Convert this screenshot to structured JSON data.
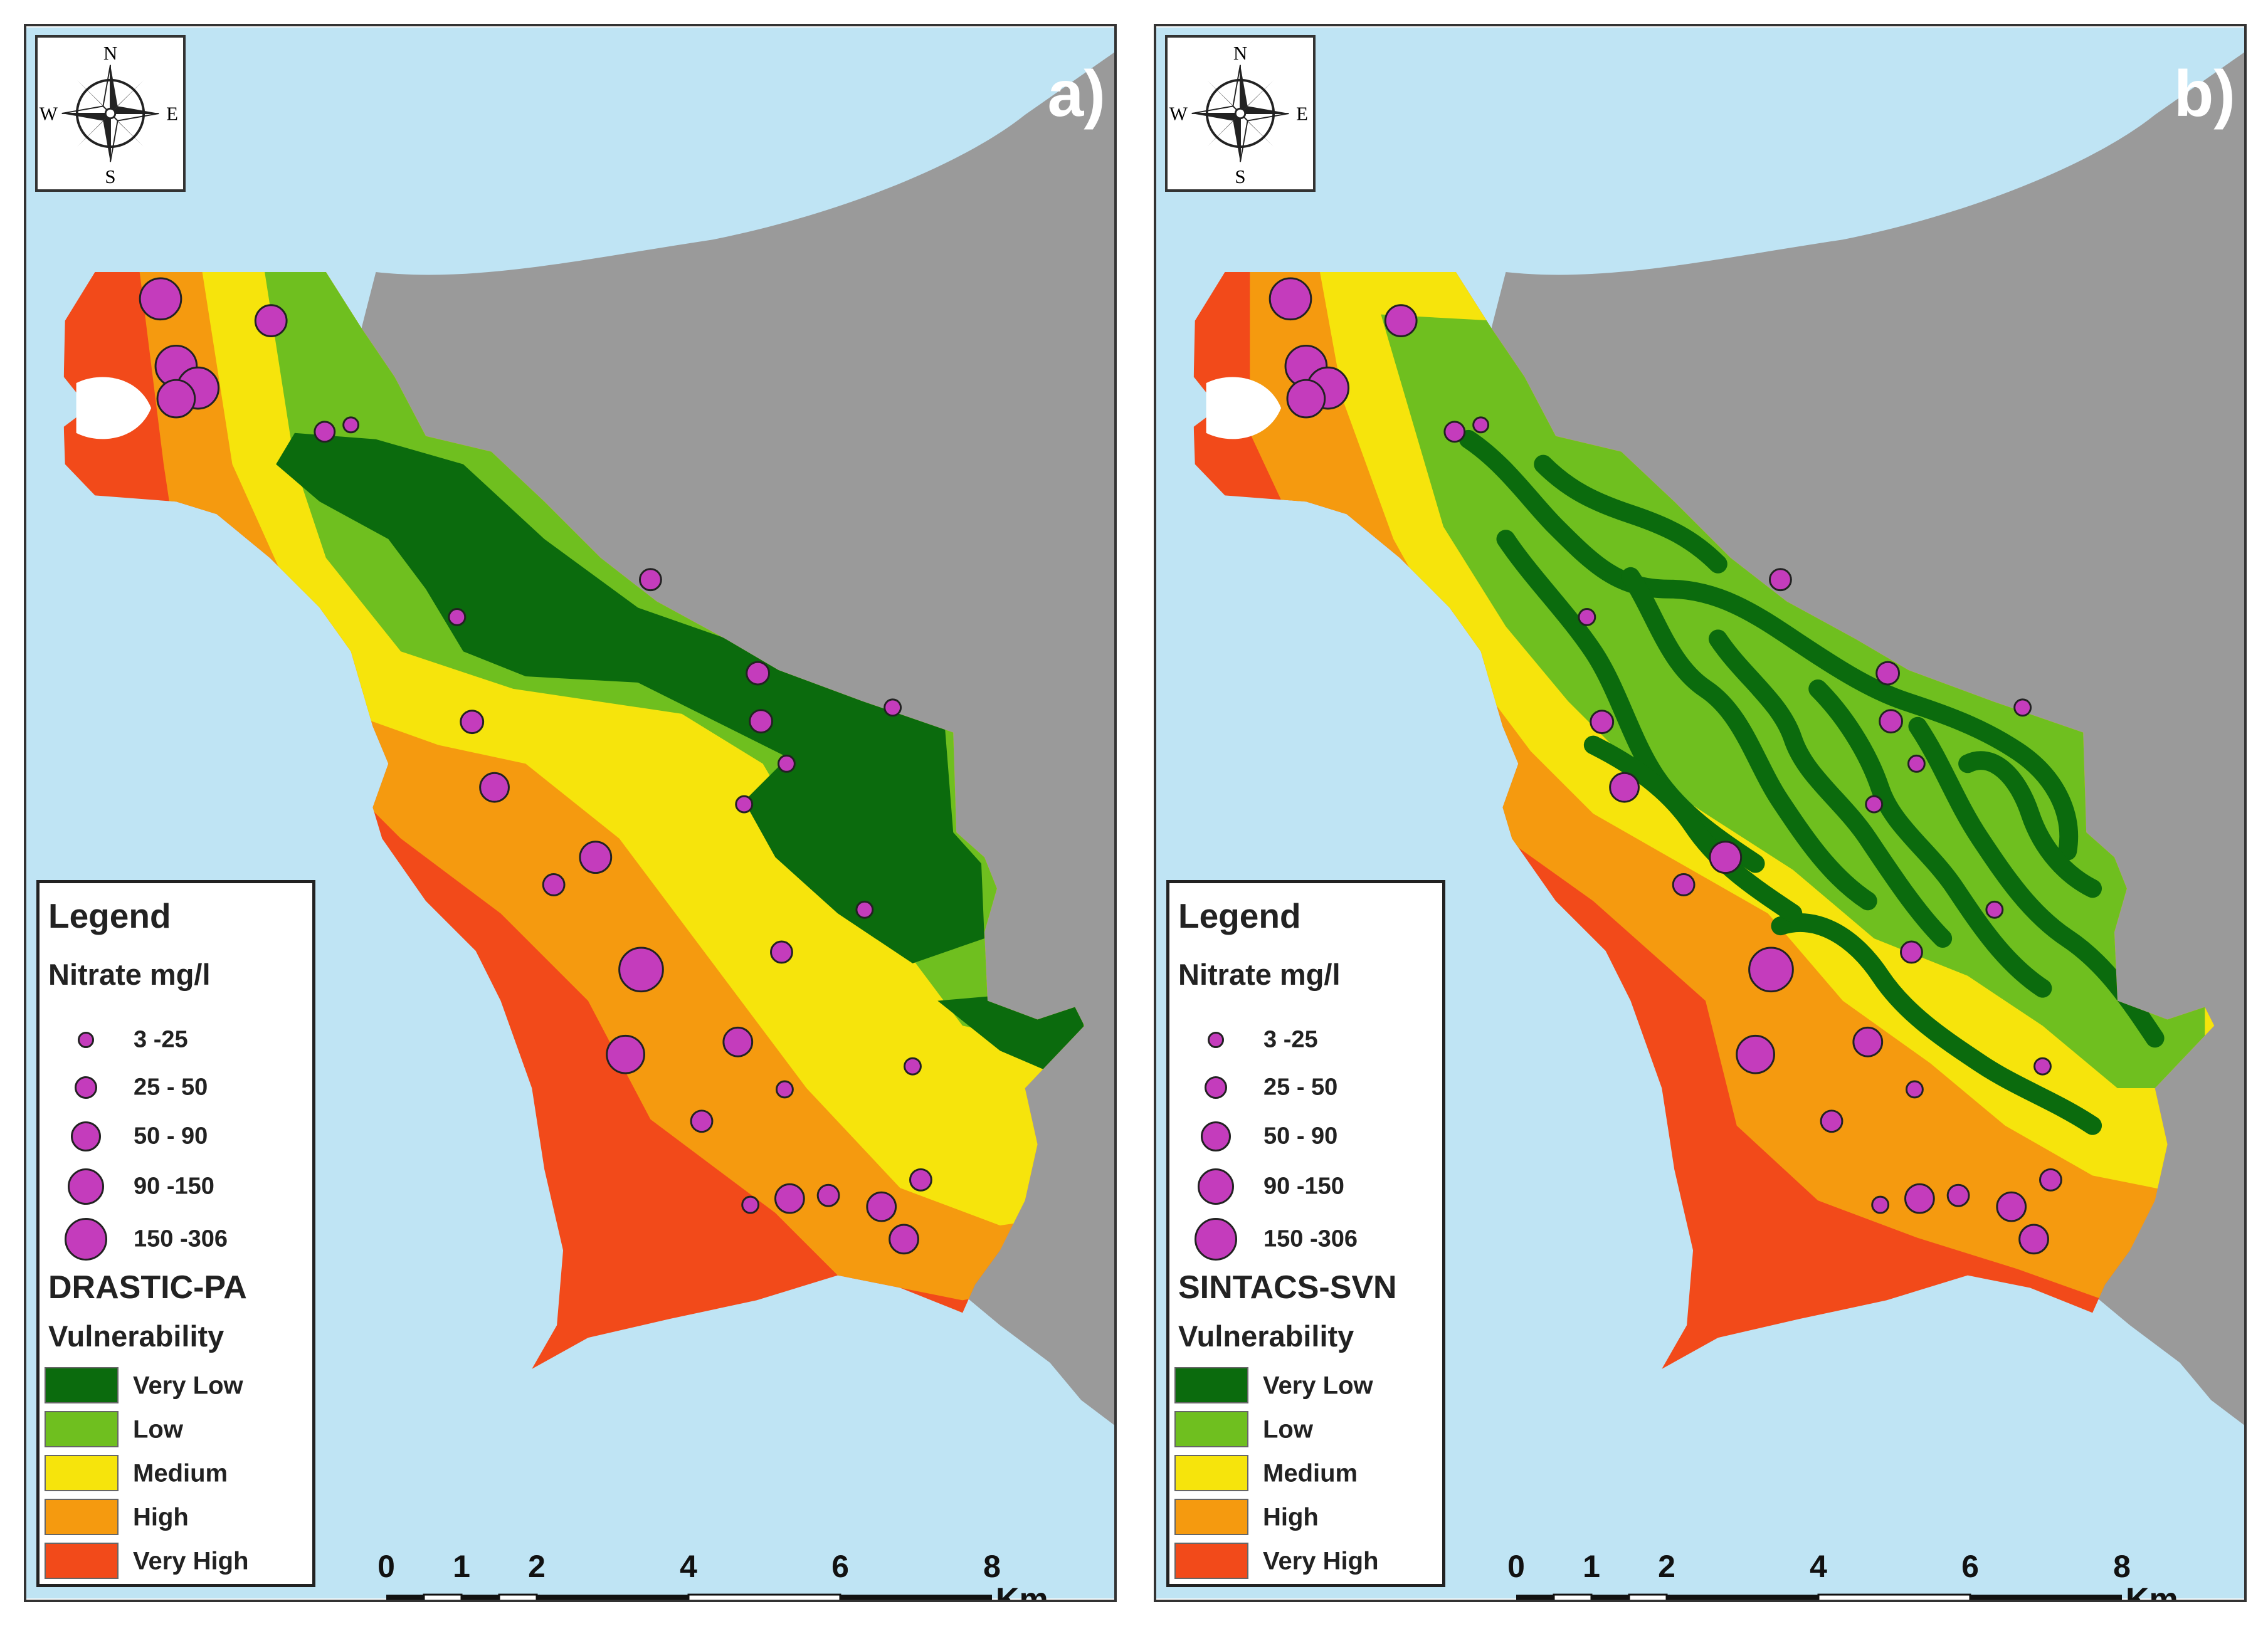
{
  "colors": {
    "sea": "#bfe4f4",
    "land_outside": "#9a9a9a",
    "point_fill": "#c43cbc"
  },
  "compass": {
    "n": "N",
    "s": "S",
    "e": "E",
    "w": "W"
  },
  "panels": [
    {
      "letter": "a)",
      "legend": {
        "title": "Legend",
        "nitrate_title": "Nitrate mg/l",
        "method": "DRASTIC-PA",
        "vulnerability_title": "Vulnerability"
      }
    },
    {
      "letter": "b)",
      "legend": {
        "title": "Legend",
        "nitrate_title": "Nitrate mg/l",
        "method": "SINTACS-SVN",
        "vulnerability_title": "Vulnerability"
      }
    }
  ],
  "nitrate_classes": [
    {
      "label": "3 -25"
    },
    {
      "label": "25 - 50"
    },
    {
      "label": "50 - 90"
    },
    {
      "label": "90 -150"
    },
    {
      "label": "150 -306"
    }
  ],
  "vulnerability_classes": [
    {
      "label": "Very Low",
      "color": "#0b6b0d"
    },
    {
      "label": "Low",
      "color": "#6fbf1f"
    },
    {
      "label": "Medium",
      "color": "#f6e40c"
    },
    {
      "label": "High",
      "color": "#f59a0f"
    },
    {
      "label": "Very High",
      "color": "#f24a1a"
    }
  ],
  "scale": {
    "ticks": [
      "0",
      "1",
      "2",
      "4",
      "6",
      "8"
    ],
    "unit": "Km"
  }
}
